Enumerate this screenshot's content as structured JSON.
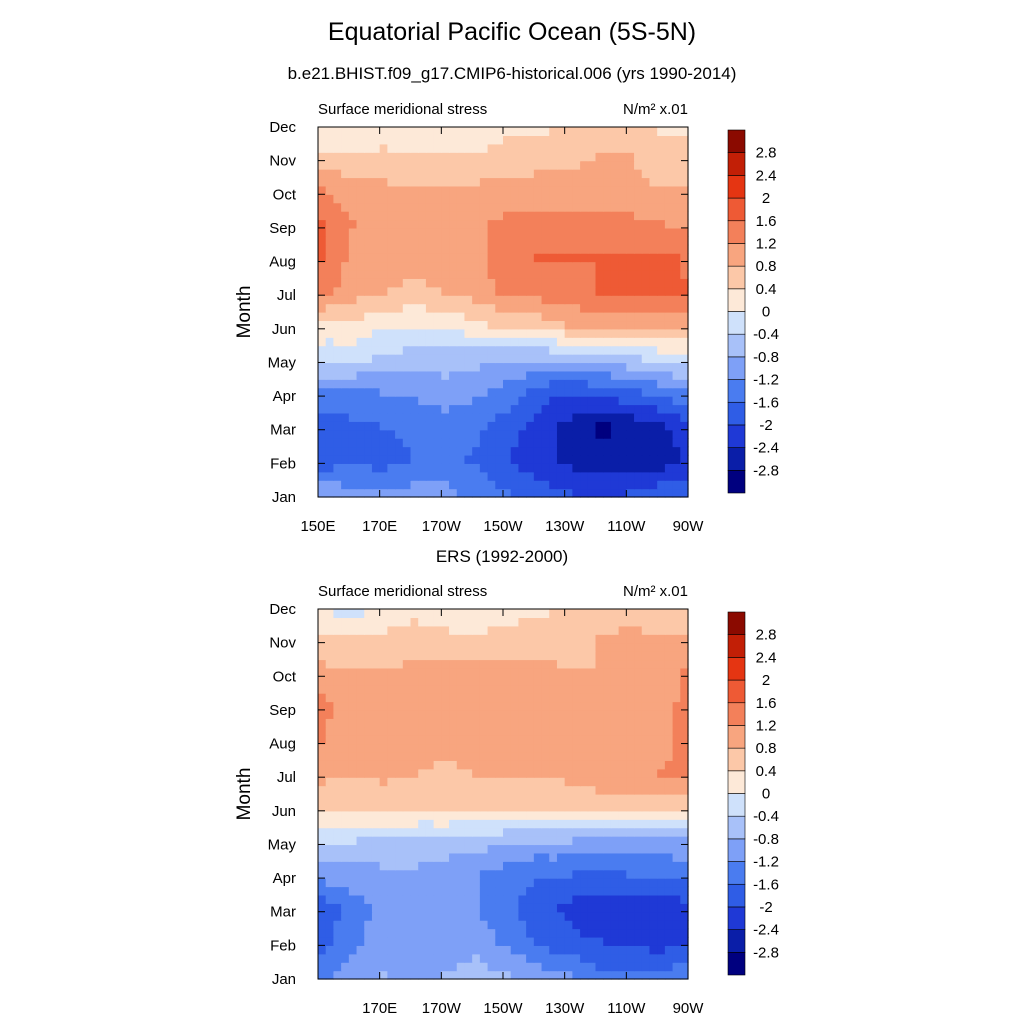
{
  "title": "Equatorial Pacific Ocean (5S-5N)",
  "subtitle": "b.e21.BHIST.f09_g17.CMIP6-historical.006 (yrs 1990-2014)",
  "colorbar": {
    "levels": [
      -3.2,
      -2.8,
      -2.4,
      -2.0,
      -1.6,
      -1.2,
      -0.8,
      -0.4,
      0.0,
      0.4,
      0.8,
      1.2,
      1.6,
      2.0,
      2.4,
      2.8,
      3.2
    ],
    "labels": [
      "-2.8",
      "-2.4",
      "-2",
      "-1.6",
      "-1.2",
      "-0.8",
      "-0.4",
      "0",
      "0.4",
      "0.8",
      "1.2",
      "1.6",
      "2",
      "2.4",
      "2.8"
    ],
    "colors": [
      "#00007f",
      "#0a1ea8",
      "#1f39d6",
      "#2f5de6",
      "#4a7cf0",
      "#7ea0f7",
      "#a8c1f9",
      "#cfe1fb",
      "#fde9d8",
      "#fcc8a8",
      "#f8a57f",
      "#f3805a",
      "#ee5a35",
      "#e53512",
      "#c21f06",
      "#8b0a00"
    ]
  },
  "chart_data": [
    {
      "type": "heatmap",
      "title": "",
      "left_label": "Surface meridional stress",
      "right_label": "N/m² x.01",
      "ylabel": "Month",
      "xlabel": "",
      "x_ticklabels": [
        "150E",
        "170E",
        "170W",
        "150W",
        "130W",
        "110W",
        "90W"
      ],
      "y_ticklabels": [
        "Jan",
        "Feb",
        "Mar",
        "Apr",
        "May",
        "Jun",
        "Jul",
        "Aug",
        "Sep",
        "Oct",
        "Nov",
        "Dec"
      ],
      "x_lon": [
        150,
        160,
        170,
        180,
        190,
        200,
        210,
        220,
        230,
        240,
        250,
        260,
        270
      ],
      "z": [
        [
          -0.9,
          -1.1,
          -1.2,
          -1.0,
          -1.1,
          -1.3,
          -1.6,
          -1.8,
          -2.0,
          -2.1,
          -2.0,
          -1.8,
          -1.6
        ],
        [
          -1.9,
          -1.7,
          -1.8,
          -1.6,
          -1.4,
          -1.7,
          -2.0,
          -2.3,
          -2.5,
          -2.6,
          -2.8,
          -2.6,
          -2.3
        ],
        [
          -1.8,
          -1.7,
          -1.6,
          -1.5,
          -1.4,
          -1.5,
          -1.8,
          -2.2,
          -2.5,
          -2.9,
          -2.7,
          -2.5,
          -2.1
        ],
        [
          -1.3,
          -1.3,
          -1.2,
          -1.1,
          -1.0,
          -1.1,
          -1.4,
          -1.8,
          -2.0,
          -1.9,
          -1.7,
          -1.5,
          -1.2
        ],
        [
          -0.3,
          -0.3,
          -0.5,
          -0.6,
          -0.6,
          -0.7,
          -0.8,
          -0.8,
          -0.7,
          -0.6,
          -0.5,
          -0.3,
          -0.1
        ],
        [
          0.3,
          0.3,
          0.1,
          0.0,
          0.1,
          0.3,
          0.5,
          0.6,
          0.8,
          1.0,
          1.0,
          1.0,
          0.9
        ],
        [
          1.3,
          1.0,
          0.8,
          0.7,
          0.8,
          1.0,
          1.3,
          1.4,
          1.5,
          1.6,
          1.7,
          1.7,
          1.6
        ],
        [
          1.6,
          1.1,
          1.0,
          0.9,
          1.0,
          1.1,
          1.4,
          1.6,
          1.6,
          1.6,
          1.7,
          1.7,
          1.5
        ],
        [
          1.6,
          1.2,
          1.0,
          0.9,
          1.0,
          1.1,
          1.3,
          1.3,
          1.3,
          1.3,
          1.3,
          1.2,
          1.1
        ],
        [
          1.2,
          1.0,
          0.9,
          0.8,
          0.8,
          0.9,
          1.0,
          1.0,
          1.0,
          0.9,
          0.9,
          0.8,
          0.8
        ],
        [
          0.5,
          0.5,
          0.5,
          0.4,
          0.4,
          0.4,
          0.5,
          0.6,
          0.7,
          0.8,
          0.8,
          0.6,
          0.5
        ],
        [
          -0.1,
          -0.1,
          0.1,
          0.2,
          0.2,
          0.3,
          0.3,
          0.3,
          0.4,
          0.5,
          0.4,
          0.3,
          0.3
        ]
      ]
    },
    {
      "type": "heatmap",
      "title": "ERS (1992-2000)",
      "left_label": "Surface meridional stress",
      "right_label": "N/m² x.01",
      "ylabel": "Month",
      "xlabel": "",
      "x_ticklabels": [
        "170E",
        "170W",
        "150W",
        "130W",
        "110W",
        "90W"
      ],
      "y_ticklabels": [
        "Jan",
        "Feb",
        "Mar",
        "Apr",
        "May",
        "Jun",
        "Jul",
        "Aug",
        "Sep",
        "Oct",
        "Nov",
        "Dec"
      ],
      "x_lon": [
        150,
        160,
        170,
        180,
        190,
        200,
        210,
        220,
        230,
        240,
        250,
        260,
        270
      ],
      "z": [
        [
          -1.3,
          -1.0,
          -0.8,
          -0.9,
          -0.8,
          -0.7,
          -0.8,
          -1.0,
          -1.2,
          -1.5,
          -1.6,
          -1.5,
          -1.3
        ],
        [
          -1.8,
          -1.3,
          -1.0,
          -0.9,
          -0.9,
          -0.9,
          -1.3,
          -1.7,
          -1.9,
          -2.0,
          -2.1,
          -2.2,
          -2.0
        ],
        [
          -1.9,
          -1.4,
          -1.1,
          -1.0,
          -1.1,
          -1.2,
          -1.5,
          -1.8,
          -2.1,
          -2.3,
          -2.4,
          -2.3,
          -2.1
        ],
        [
          -1.0,
          -1.0,
          -0.9,
          -0.9,
          -1.0,
          -1.2,
          -1.4,
          -1.6,
          -1.6,
          -1.7,
          -1.6,
          -1.6,
          -1.5
        ],
        [
          -0.3,
          -0.4,
          -0.5,
          -0.5,
          -0.6,
          -0.6,
          -0.7,
          -0.8,
          -0.8,
          -0.9,
          -0.9,
          -0.9,
          -0.8
        ],
        [
          0.6,
          0.5,
          0.5,
          0.5,
          0.6,
          0.5,
          0.4,
          0.4,
          0.5,
          0.6,
          0.6,
          0.5,
          0.6
        ],
        [
          0.9,
          0.8,
          0.9,
          0.8,
          0.7,
          0.8,
          0.9,
          0.9,
          0.9,
          1.0,
          1.1,
          1.2,
          1.3
        ],
        [
          1.2,
          1.0,
          1.0,
          1.1,
          1.0,
          1.0,
          1.1,
          1.0,
          1.0,
          0.9,
          1.0,
          1.1,
          1.3
        ],
        [
          1.3,
          1.0,
          1.0,
          1.1,
          1.0,
          0.9,
          1.0,
          0.9,
          0.8,
          0.8,
          1.0,
          1.1,
          1.3
        ],
        [
          0.9,
          0.9,
          0.8,
          0.9,
          1.0,
          0.9,
          0.9,
          0.9,
          0.8,
          0.8,
          1.0,
          1.0,
          1.3
        ],
        [
          0.5,
          0.4,
          0.5,
          0.6,
          0.5,
          0.5,
          0.5,
          0.6,
          0.7,
          0.8,
          0.9,
          0.8,
          0.8
        ],
        [
          -0.1,
          -0.2,
          0.0,
          0.2,
          0.1,
          0.0,
          0.2,
          0.3,
          0.4,
          0.5,
          0.6,
          0.6,
          0.3
        ]
      ]
    }
  ]
}
